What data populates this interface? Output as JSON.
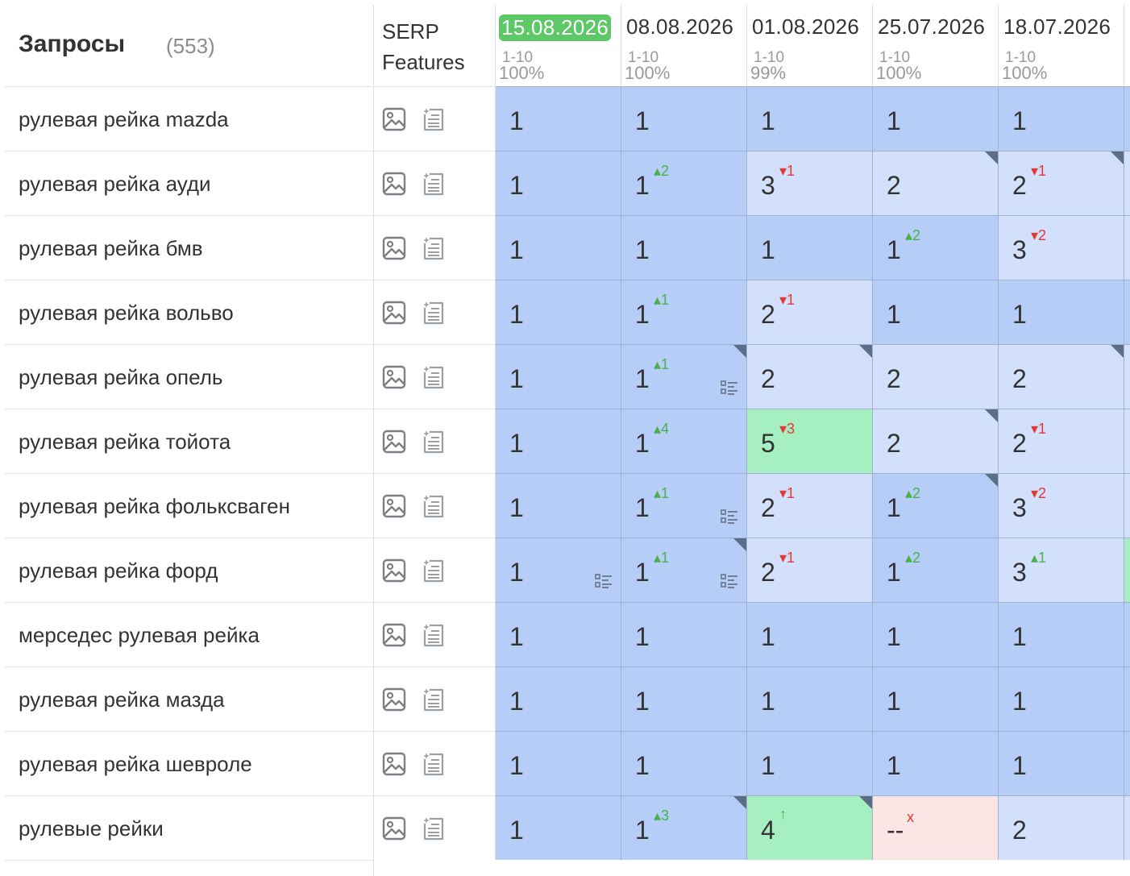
{
  "header": {
    "title": "Запросы",
    "count": "(553)",
    "serp_line1": "SERP",
    "serp_line2": "Features",
    "dates": [
      {
        "date": "15.08.2026",
        "range": "1-10",
        "percent": "100%",
        "highlighted": true
      },
      {
        "date": "08.08.2026",
        "range": "1-10",
        "percent": "100%",
        "highlighted": false
      },
      {
        "date": "01.08.2026",
        "range": "1-10",
        "percent": "99%",
        "highlighted": false
      },
      {
        "date": "25.07.2026",
        "range": "1-10",
        "percent": "100%",
        "highlighted": false
      },
      {
        "date": "18.07.2026",
        "range": "1-10",
        "percent": "100%",
        "highlighted": false
      }
    ]
  },
  "colors": {
    "top1": "#b6cdf7",
    "top3": "#d2e0fb",
    "top10": "#a6efc0",
    "not_found": "#fbe4e4",
    "highlight_date": "#5cc866",
    "delta_up": "#4caf50",
    "delta_down": "#e53935"
  },
  "icons": {
    "serp_feature_1": "image-icon",
    "serp_feature_2": "featured-snippet-icon",
    "cell_snippet": "snippet-list-icon",
    "cell_corner": "corner-marker-icon"
  },
  "rows": [
    {
      "query": "рулевая рейка mazda",
      "edge": "c-dark",
      "cells": [
        {
          "pos": "1",
          "bg": "c-dark"
        },
        {
          "pos": "1",
          "bg": "c-dark"
        },
        {
          "pos": "1",
          "bg": "c-dark"
        },
        {
          "pos": "1",
          "bg": "c-dark"
        },
        {
          "pos": "1",
          "bg": "c-dark"
        }
      ]
    },
    {
      "query": "рулевая рейка ауди",
      "edge": "c-light",
      "cells": [
        {
          "pos": "1",
          "bg": "c-dark"
        },
        {
          "pos": "1",
          "bg": "c-dark",
          "delta": "▴2",
          "dir": "up"
        },
        {
          "pos": "3",
          "bg": "c-light",
          "delta": "▾1",
          "dir": "down"
        },
        {
          "pos": "2",
          "bg": "c-light",
          "corner": true
        },
        {
          "pos": "2",
          "bg": "c-light",
          "delta": "▾1",
          "dir": "down",
          "corner": true
        }
      ]
    },
    {
      "query": "рулевая рейка бмв",
      "edge": "c-light",
      "cells": [
        {
          "pos": "1",
          "bg": "c-dark"
        },
        {
          "pos": "1",
          "bg": "c-dark"
        },
        {
          "pos": "1",
          "bg": "c-dark"
        },
        {
          "pos": "1",
          "bg": "c-dark",
          "delta": "▴2",
          "dir": "up"
        },
        {
          "pos": "3",
          "bg": "c-light",
          "delta": "▾2",
          "dir": "down"
        }
      ]
    },
    {
      "query": "рулевая рейка вольво",
      "edge": "c-dark",
      "cells": [
        {
          "pos": "1",
          "bg": "c-dark"
        },
        {
          "pos": "1",
          "bg": "c-dark",
          "delta": "▴1",
          "dir": "up"
        },
        {
          "pos": "2",
          "bg": "c-light",
          "delta": "▾1",
          "dir": "down"
        },
        {
          "pos": "1",
          "bg": "c-dark"
        },
        {
          "pos": "1",
          "bg": "c-dark"
        }
      ]
    },
    {
      "query": "рулевая рейка опель",
      "edge": "c-light",
      "cells": [
        {
          "pos": "1",
          "bg": "c-dark"
        },
        {
          "pos": "1",
          "bg": "c-dark",
          "delta": "▴1",
          "dir": "up",
          "corner": true,
          "snippet": true
        },
        {
          "pos": "2",
          "bg": "c-light",
          "corner": true
        },
        {
          "pos": "2",
          "bg": "c-light"
        },
        {
          "pos": "2",
          "bg": "c-light",
          "corner": true
        }
      ]
    },
    {
      "query": "рулевая рейка тойота",
      "edge": "c-light",
      "cells": [
        {
          "pos": "1",
          "bg": "c-dark"
        },
        {
          "pos": "1",
          "bg": "c-dark",
          "delta": "▴4",
          "dir": "up"
        },
        {
          "pos": "5",
          "bg": "c-green",
          "delta": "▾3",
          "dir": "down"
        },
        {
          "pos": "2",
          "bg": "c-light",
          "corner": true
        },
        {
          "pos": "2",
          "bg": "c-light",
          "delta": "▾1",
          "dir": "down"
        }
      ]
    },
    {
      "query": "рулевая рейка фольксваген",
      "edge": "c-light",
      "cells": [
        {
          "pos": "1",
          "bg": "c-dark"
        },
        {
          "pos": "1",
          "bg": "c-dark",
          "delta": "▴1",
          "dir": "up",
          "snippet": true
        },
        {
          "pos": "2",
          "bg": "c-light",
          "delta": "▾1",
          "dir": "down"
        },
        {
          "pos": "1",
          "bg": "c-dark",
          "delta": "▴2",
          "dir": "up",
          "corner": true
        },
        {
          "pos": "3",
          "bg": "c-light",
          "delta": "▾2",
          "dir": "down"
        }
      ]
    },
    {
      "query": "рулевая рейка форд",
      "edge": "c-green",
      "cells": [
        {
          "pos": "1",
          "bg": "c-dark",
          "snippet": true
        },
        {
          "pos": "1",
          "bg": "c-dark",
          "delta": "▴1",
          "dir": "up",
          "corner": true,
          "snippet": true
        },
        {
          "pos": "2",
          "bg": "c-light",
          "delta": "▾1",
          "dir": "down"
        },
        {
          "pos": "1",
          "bg": "c-dark",
          "delta": "▴2",
          "dir": "up"
        },
        {
          "pos": "3",
          "bg": "c-light",
          "delta": "▴1",
          "dir": "up"
        }
      ]
    },
    {
      "query": "мерседес рулевая рейка",
      "edge": "c-dark",
      "cells": [
        {
          "pos": "1",
          "bg": "c-dark"
        },
        {
          "pos": "1",
          "bg": "c-dark"
        },
        {
          "pos": "1",
          "bg": "c-dark"
        },
        {
          "pos": "1",
          "bg": "c-dark"
        },
        {
          "pos": "1",
          "bg": "c-dark"
        }
      ]
    },
    {
      "query": "рулевая рейка мазда",
      "edge": "c-dark",
      "cells": [
        {
          "pos": "1",
          "bg": "c-dark"
        },
        {
          "pos": "1",
          "bg": "c-dark"
        },
        {
          "pos": "1",
          "bg": "c-dark"
        },
        {
          "pos": "1",
          "bg": "c-dark"
        },
        {
          "pos": "1",
          "bg": "c-dark"
        }
      ]
    },
    {
      "query": "рулевая рейка шевроле",
      "edge": "c-dark",
      "cells": [
        {
          "pos": "1",
          "bg": "c-dark"
        },
        {
          "pos": "1",
          "bg": "c-dark"
        },
        {
          "pos": "1",
          "bg": "c-dark"
        },
        {
          "pos": "1",
          "bg": "c-dark"
        },
        {
          "pos": "1",
          "bg": "c-dark"
        }
      ]
    },
    {
      "query": "рулевые рейки",
      "edge": "c-light",
      "cells": [
        {
          "pos": "1",
          "bg": "c-dark"
        },
        {
          "pos": "1",
          "bg": "c-dark",
          "delta": "▴3",
          "dir": "up",
          "corner": true
        },
        {
          "pos": "4",
          "bg": "c-green",
          "delta": "↑",
          "dir": "new",
          "corner": true
        },
        {
          "pos": "--",
          "bg": "c-pink",
          "delta": "x",
          "dir": "lost"
        },
        {
          "pos": "2",
          "bg": "c-light"
        }
      ]
    }
  ]
}
